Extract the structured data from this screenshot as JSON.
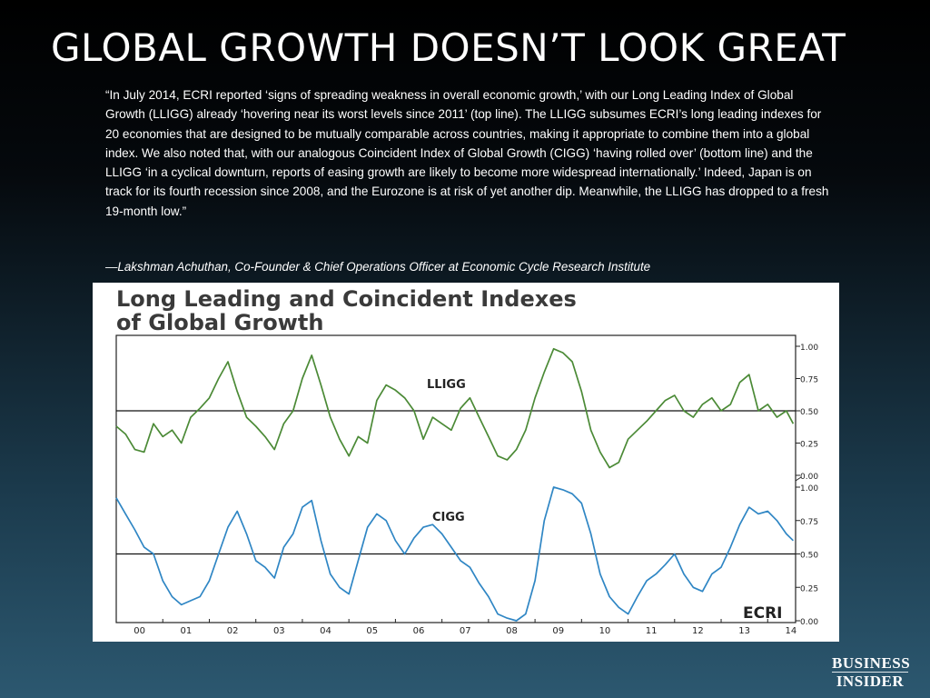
{
  "slide": {
    "title": "GLOBAL GROWTH DOESN’T LOOK GREAT",
    "quote": "“In July 2014, ECRI reported ‘signs of spreading weakness in overall economic growth,’ with our Long Leading Index of Global Growth (LLIGG) already ‘hovering near its worst levels since 2011’ (top line). The LLIGG subsumes ECRI’s long leading indexes for 20 economies that are designed to be mutually comparable across countries, making it appropriate to combine them into a global index. We also noted that, with our analogous Coincident Index of Global Growth (CIGG) ‘having rolled over’ (bottom line) and the LLIGG ‘in a cyclical downturn, reports of easing growth are likely to become more widespread internationally.’ Indeed, Japan is on track for its fourth recession since 2008, and the Eurozone is at risk of yet another dip. Meanwhile, the LLIGG has dropped to a fresh 19-month low.”",
    "attribution": "—Lakshman Achuthan, Co-Founder & Chief Operations Officer at Economic Cycle Research Institute",
    "logo_line1": "BUSINESS",
    "logo_line2": "INSIDER"
  },
  "chart_data": {
    "type": "line",
    "title_line1": "Long Leading and Coincident Indexes",
    "title_line2": "of Global Growth",
    "x_tick_labels": [
      "00",
      "01",
      "02",
      "03",
      "04",
      "05",
      "06",
      "07",
      "08",
      "09",
      "10",
      "11",
      "12",
      "13",
      "14"
    ],
    "x_range": [
      2000.0,
      2014.6
    ],
    "reference_line": 0.5,
    "watermark": "ECRI",
    "colors": {
      "LLIGG": "#4b8a36",
      "CIGG": "#2f86c4",
      "axis": "#222222"
    },
    "panels": [
      {
        "name": "LLIGG",
        "label": "LLIGG",
        "ylim": [
          0,
          1
        ],
        "ytick_labels": [
          "0.00",
          "0.25",
          "0.50",
          "0.75",
          "1.00"
        ],
        "ytick_values": [
          0,
          0.25,
          0.5,
          0.75,
          1.0
        ],
        "x": [
          2000.0,
          2000.2,
          2000.4,
          2000.6,
          2000.8,
          2001.0,
          2001.2,
          2001.4,
          2001.6,
          2001.8,
          2002.0,
          2002.2,
          2002.4,
          2002.6,
          2002.8,
          2003.0,
          2003.2,
          2003.4,
          2003.6,
          2003.8,
          2004.0,
          2004.2,
          2004.4,
          2004.6,
          2004.8,
          2005.0,
          2005.2,
          2005.4,
          2005.6,
          2005.8,
          2006.0,
          2006.2,
          2006.4,
          2006.6,
          2006.8,
          2007.0,
          2007.2,
          2007.4,
          2007.6,
          2007.8,
          2008.0,
          2008.2,
          2008.4,
          2008.6,
          2008.8,
          2009.0,
          2009.2,
          2009.4,
          2009.6,
          2009.8,
          2010.0,
          2010.2,
          2010.4,
          2010.6,
          2010.8,
          2011.0,
          2011.2,
          2011.4,
          2011.6,
          2011.8,
          2012.0,
          2012.2,
          2012.4,
          2012.6,
          2012.8,
          2013.0,
          2013.2,
          2013.4,
          2013.6,
          2013.8,
          2014.0,
          2014.2,
          2014.4,
          2014.55
        ],
        "values": [
          0.38,
          0.32,
          0.2,
          0.18,
          0.4,
          0.3,
          0.35,
          0.25,
          0.45,
          0.52,
          0.6,
          0.75,
          0.88,
          0.65,
          0.45,
          0.38,
          0.3,
          0.2,
          0.4,
          0.5,
          0.75,
          0.93,
          0.7,
          0.45,
          0.28,
          0.15,
          0.3,
          0.25,
          0.58,
          0.7,
          0.66,
          0.6,
          0.5,
          0.28,
          0.45,
          0.4,
          0.35,
          0.52,
          0.6,
          0.45,
          0.3,
          0.15,
          0.12,
          0.2,
          0.35,
          0.6,
          0.8,
          0.98,
          0.95,
          0.88,
          0.65,
          0.35,
          0.18,
          0.06,
          0.1,
          0.28,
          0.35,
          0.42,
          0.5,
          0.58,
          0.62,
          0.5,
          0.45,
          0.55,
          0.6,
          0.5,
          0.55,
          0.72,
          0.78,
          0.5,
          0.55,
          0.45,
          0.5,
          0.4
        ]
      },
      {
        "name": "CIGG",
        "label": "CIGG",
        "ylim": [
          0,
          1
        ],
        "ytick_labels": [
          "0.00",
          "0.25",
          "0.50",
          "0.75",
          "1.00"
        ],
        "ytick_values": [
          0,
          0.25,
          0.5,
          0.75,
          1.0
        ],
        "x": [
          2000.0,
          2000.2,
          2000.4,
          2000.6,
          2000.8,
          2001.0,
          2001.2,
          2001.4,
          2001.6,
          2001.8,
          2002.0,
          2002.2,
          2002.4,
          2002.6,
          2002.8,
          2003.0,
          2003.2,
          2003.4,
          2003.6,
          2003.8,
          2004.0,
          2004.2,
          2004.4,
          2004.6,
          2004.8,
          2005.0,
          2005.2,
          2005.4,
          2005.6,
          2005.8,
          2006.0,
          2006.2,
          2006.4,
          2006.6,
          2006.8,
          2007.0,
          2007.2,
          2007.4,
          2007.6,
          2007.8,
          2008.0,
          2008.2,
          2008.4,
          2008.6,
          2008.8,
          2009.0,
          2009.2,
          2009.4,
          2009.6,
          2009.8,
          2010.0,
          2010.2,
          2010.4,
          2010.6,
          2010.8,
          2011.0,
          2011.2,
          2011.4,
          2011.6,
          2011.8,
          2012.0,
          2012.2,
          2012.4,
          2012.6,
          2012.8,
          2013.0,
          2013.2,
          2013.4,
          2013.6,
          2013.8,
          2014.0,
          2014.2,
          2014.4,
          2014.55
        ],
        "values": [
          0.92,
          0.8,
          0.68,
          0.55,
          0.5,
          0.3,
          0.18,
          0.12,
          0.15,
          0.18,
          0.3,
          0.5,
          0.7,
          0.82,
          0.65,
          0.45,
          0.4,
          0.32,
          0.55,
          0.65,
          0.85,
          0.9,
          0.6,
          0.35,
          0.25,
          0.2,
          0.45,
          0.7,
          0.8,
          0.75,
          0.6,
          0.5,
          0.62,
          0.7,
          0.72,
          0.65,
          0.55,
          0.45,
          0.4,
          0.28,
          0.18,
          0.05,
          0.02,
          0.0,
          0.05,
          0.3,
          0.75,
          1.0,
          0.98,
          0.95,
          0.88,
          0.65,
          0.35,
          0.18,
          0.1,
          0.05,
          0.18,
          0.3,
          0.35,
          0.42,
          0.5,
          0.35,
          0.25,
          0.22,
          0.35,
          0.4,
          0.55,
          0.72,
          0.85,
          0.8,
          0.82,
          0.75,
          0.65,
          0.6
        ]
      }
    ]
  }
}
